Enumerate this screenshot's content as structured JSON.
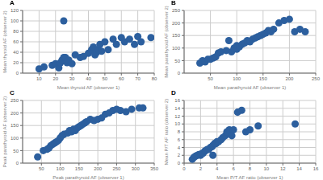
{
  "chart_data": [
    {
      "type": "scatter",
      "title": "A",
      "xlabel": "Mean thyroid AF (observer 1)",
      "ylabel": "Mean thyroid AF (observer 2)",
      "xlim": [
        0,
        80
      ],
      "ylim": [
        0,
        120
      ],
      "xticks": [
        10,
        20,
        30,
        40,
        50,
        60,
        70,
        80
      ],
      "yticks": [
        0,
        20,
        40,
        60,
        80,
        100,
        120
      ],
      "x": [
        10,
        13,
        18,
        20,
        22,
        23,
        24,
        25,
        25,
        26,
        27,
        28,
        30,
        32,
        35,
        37,
        40,
        42,
        43,
        44,
        45,
        46,
        47,
        48,
        50,
        52,
        55,
        57,
        60,
        62,
        65,
        68,
        70,
        72,
        78
      ],
      "values": [
        8,
        12,
        15,
        18,
        10,
        20,
        25,
        30,
        100,
        30,
        20,
        25,
        18,
        35,
        30,
        32,
        38,
        45,
        50,
        35,
        40,
        45,
        55,
        42,
        60,
        45,
        65,
        55,
        68,
        60,
        65,
        55,
        70,
        60,
        68
      ],
      "color": "#2C5F9E",
      "grid": true
    },
    {
      "type": "scatter",
      "title": "B",
      "xlabel": "Mean parathyroid AF (observer 1)",
      "ylabel": "Mean parathyroid AF (observer 2)",
      "xlim": [
        0,
        250
      ],
      "ylim": [
        0,
        250
      ],
      "xticks": [
        50,
        100,
        150,
        200,
        250
      ],
      "yticks": [
        0,
        50,
        100,
        150,
        200,
        250
      ],
      "x": [
        30,
        35,
        40,
        45,
        50,
        55,
        60,
        65,
        70,
        80,
        85,
        90,
        95,
        100,
        100,
        105,
        110,
        115,
        120,
        125,
        130,
        135,
        140,
        145,
        150,
        155,
        160,
        165,
        170,
        180,
        190,
        200,
        210,
        220,
        230
      ],
      "values": [
        40,
        50,
        45,
        55,
        55,
        60,
        65,
        80,
        85,
        90,
        130,
        85,
        100,
        95,
        110,
        105,
        115,
        120,
        130,
        125,
        135,
        140,
        145,
        150,
        155,
        160,
        170,
        165,
        175,
        200,
        210,
        215,
        165,
        175,
        165
      ],
      "color": "#2C5F9E",
      "grid": true
    },
    {
      "type": "scatter",
      "title": "C",
      "xlabel": "Peak parathyroid AF (observer 1)",
      "ylabel": "Peak parathyroid AF (observer 2)",
      "xlim": [
        0,
        350
      ],
      "ylim": [
        0,
        250
      ],
      "xticks": [
        50,
        100,
        150,
        200,
        250,
        300,
        350
      ],
      "yticks": [
        0,
        50,
        100,
        150,
        200,
        250
      ],
      "x": [
        40,
        55,
        65,
        70,
        75,
        80,
        85,
        90,
        95,
        100,
        105,
        110,
        120,
        125,
        130,
        135,
        140,
        145,
        150,
        155,
        160,
        165,
        170,
        180,
        190,
        200,
        210,
        220,
        230,
        240,
        250,
        260,
        275,
        290,
        310,
        320
      ],
      "values": [
        25,
        50,
        55,
        60,
        70,
        75,
        80,
        85,
        90,
        100,
        110,
        115,
        120,
        130,
        125,
        135,
        130,
        140,
        145,
        150,
        155,
        160,
        165,
        175,
        170,
        175,
        180,
        195,
        200,
        210,
        215,
        210,
        205,
        215,
        220,
        220
      ],
      "color": "#2C5F9E",
      "grid": true
    },
    {
      "type": "scatter",
      "title": "D",
      "xlabel": "Mean P/T AF ratio (observer 1)",
      "ylabel": "Mean P/T AF ratio (observer 2)",
      "xlim": [
        0,
        16
      ],
      "ylim": [
        0,
        16
      ],
      "xticks": [
        0,
        2,
        4,
        6,
        8,
        10,
        12,
        14,
        16
      ],
      "yticks": [
        0,
        2,
        4,
        6,
        8,
        10,
        12,
        14,
        16
      ],
      "x": [
        1.0,
        1.2,
        1.4,
        1.6,
        1.8,
        2.0,
        2.1,
        2.2,
        2.3,
        2.5,
        2.6,
        2.8,
        3.0,
        3.2,
        3.4,
        3.5,
        3.7,
        3.9,
        4.0,
        4.2,
        4.5,
        4.7,
        5.0,
        5.2,
        5.5,
        5.8,
        6.0,
        6.5,
        7.0,
        7.5,
        8.0,
        9.0,
        13.5,
        3.5
      ],
      "values": [
        1.0,
        1.5,
        1.8,
        2.0,
        2.2,
        2.0,
        2.3,
        2.5,
        2.5,
        3.0,
        3.2,
        3.5,
        3.5,
        4.0,
        4.2,
        4.5,
        5.0,
        5.0,
        5.5,
        5.5,
        6.0,
        6.5,
        7.0,
        8.0,
        8.5,
        7.0,
        8.5,
        13.0,
        13.5,
        8.0,
        8.5,
        9.5,
        10.0,
        2.0
      ],
      "color": "#2C5F9E",
      "grid": true
    }
  ]
}
